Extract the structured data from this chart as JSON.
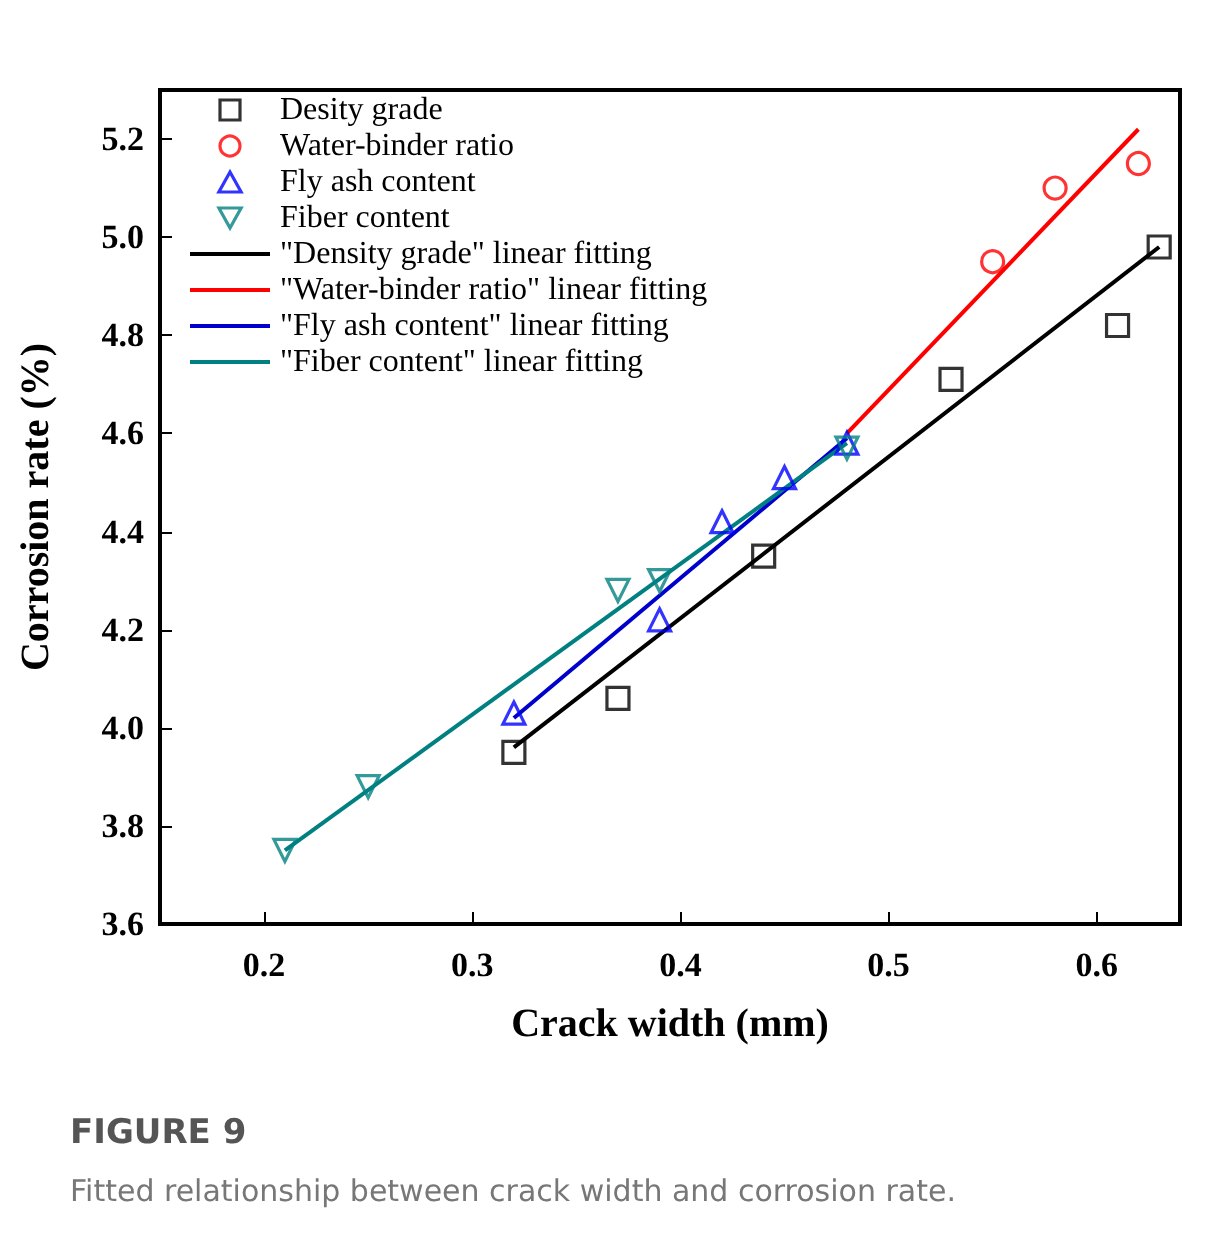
{
  "chart_data": {
    "type": "scatter",
    "xlabel": "Crack width (mm)",
    "ylabel": "Corrosion rate (%)",
    "annotations": [
      "FIGURE 9",
      "Fitted relationship between crack width and corrosion rate."
    ],
    "xlim": [
      0.15,
      0.64
    ],
    "xticks": [
      0.2,
      0.3,
      0.4,
      0.5,
      0.6
    ],
    "ylim": [
      3.6,
      5.3
    ],
    "yticks": [
      3.6,
      3.8,
      {
        "value": 4,
        "label": "4.0"
      },
      4.2,
      4.4,
      4.6,
      4.8,
      {
        "value": 5,
        "label": "5.0"
      },
      5.2
    ],
    "grid": false,
    "legend": "top left",
    "series": [
      {
        "name": "Desity grade",
        "type": "scatter",
        "marker": "square",
        "color": "#000000",
        "x": [
          0.32,
          0.37,
          0.44,
          0.53,
          0.61,
          0.63
        ],
        "values": [
          3.95,
          4.06,
          4.35,
          4.71,
          4.82,
          4.98
        ]
      },
      {
        "name": "Water-binder ratio",
        "type": "scatter",
        "marker": "circle",
        "color": "#ff0000",
        "x": [
          0.55,
          0.58,
          0.62
        ],
        "values": [
          4.95,
          5.1,
          5.15
        ]
      },
      {
        "name": "Fly ash content",
        "type": "scatter",
        "marker": "triangle",
        "color": "#0000ff",
        "x": [
          0.32,
          0.39,
          0.42,
          0.45,
          0.48
        ],
        "values": [
          4.03,
          4.22,
          4.42,
          4.51,
          4.58
        ]
      },
      {
        "name": "Fiber content",
        "type": "scatter",
        "marker": "triangle_down",
        "color": "#008080",
        "x": [
          0.21,
          0.25,
          0.37,
          0.39,
          0.48
        ],
        "values": [
          3.75,
          3.88,
          4.28,
          4.3,
          4.57
        ]
      },
      {
        "name": "\"Density grade\" linear fitting",
        "type": "line",
        "marker": "none",
        "color": "#000000",
        "x": [
          0.32,
          0.63
        ],
        "values": [
          3.96,
          4.98
        ]
      },
      {
        "name": "\"Water-binder ratio\" linear fitting",
        "type": "line",
        "marker": "none",
        "color": "#ff0000",
        "x": [
          0.48,
          0.62
        ],
        "values": [
          4.6,
          5.22
        ]
      },
      {
        "name": "\"Fly ash content\" linear fitting",
        "type": "line",
        "marker": "none",
        "color": "#0000cc",
        "x": [
          0.32,
          0.48
        ],
        "values": [
          4.02,
          4.59
        ]
      },
      {
        "name": "\"Fiber content\" linear fitting",
        "type": "line",
        "marker": "none",
        "color": "#008080",
        "x": [
          0.21,
          0.48
        ],
        "values": [
          3.75,
          4.58
        ]
      }
    ]
  }
}
